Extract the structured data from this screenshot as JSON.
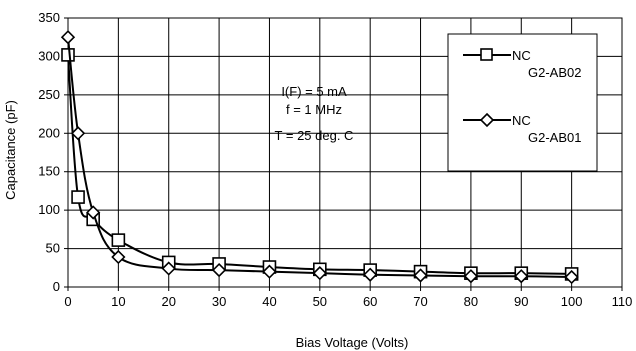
{
  "chart_data": {
    "type": "line",
    "xlabel": "Bias Voltage (Volts)",
    "ylabel": "Capacitance (pF)",
    "xlim": [
      0,
      110
    ],
    "ylim": [
      0,
      350
    ],
    "xticks": [
      0,
      10,
      20,
      30,
      40,
      50,
      60,
      70,
      80,
      90,
      100,
      110
    ],
    "yticks": [
      0,
      50,
      100,
      150,
      200,
      250,
      300,
      350
    ],
    "grid": true,
    "legend_position": "top-right",
    "annotation": [
      "I(F) = 5 mA",
      "f = 1 MHz",
      "T = 25 deg. C"
    ],
    "series": [
      {
        "name_line1": "NC",
        "name_line2": "G2-AB02",
        "marker": "square",
        "x": [
          0,
          2,
          5,
          10,
          20,
          30,
          40,
          50,
          60,
          70,
          80,
          90,
          100
        ],
        "y": [
          302,
          117,
          88,
          61,
          32,
          30,
          26,
          23,
          22,
          20,
          18,
          18,
          17
        ]
      },
      {
        "name_line1": "NC",
        "name_line2": "G2-AB01",
        "marker": "diamond",
        "x": [
          0,
          2,
          5,
          10,
          20,
          30,
          40,
          50,
          60,
          70,
          80,
          90,
          100
        ],
        "y": [
          325,
          200,
          97,
          39,
          24,
          22,
          20,
          18,
          16,
          15,
          14,
          14,
          13
        ]
      }
    ]
  }
}
